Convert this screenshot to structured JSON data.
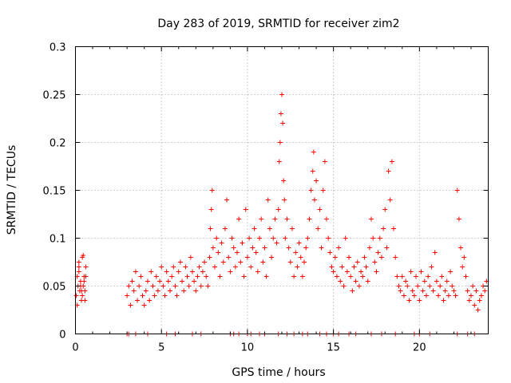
{
  "chart_data": {
    "type": "scatter",
    "title": "Day 283 of 2019, SRMTID for receiver zim2",
    "xlabel": "GPS time / hours",
    "ylabel": "SRMTID / TECUs",
    "xlim": [
      0,
      24
    ],
    "ylim": [
      0,
      0.3
    ],
    "xticks": [
      0,
      5,
      10,
      15,
      20
    ],
    "xtick_labels": [
      "0",
      "5",
      "10",
      "15",
      "20"
    ],
    "yticks": [
      0,
      0.05,
      0.1,
      0.15,
      0.2,
      0.25,
      0.3
    ],
    "ytick_labels": [
      "0",
      "0.05",
      "0.1",
      "0.15",
      "0.2",
      "0.25",
      "0.3"
    ],
    "grid": true,
    "marker": "+",
    "color": "#ff0000",
    "series": [
      {
        "name": "SRMTID",
        "x": [
          0.05,
          0.1,
          0.15,
          0.2,
          0.25,
          0.3,
          0.35,
          0.4,
          0.45,
          0.5,
          0.55,
          0.6,
          0.1,
          0.2,
          0.3,
          0.4,
          0.5,
          0.6,
          0.2,
          0.35,
          0.45,
          0.55,
          3.0,
          3.1,
          3.2,
          3.3,
          3.4,
          3.5,
          3.6,
          3.7,
          3.8,
          3.9,
          4.0,
          4.1,
          4.2,
          4.3,
          4.4,
          4.5,
          4.6,
          4.7,
          4.8,
          4.9,
          5.0,
          5.1,
          5.2,
          5.3,
          5.4,
          5.5,
          5.6,
          5.7,
          5.8,
          5.9,
          6.0,
          6.1,
          6.2,
          6.3,
          6.4,
          6.5,
          6.6,
          6.7,
          6.8,
          6.9,
          7.0,
          7.1,
          7.2,
          7.3,
          7.4,
          7.5,
          7.6,
          7.7,
          7.8,
          7.85,
          7.9,
          7.95,
          8.0,
          8.1,
          8.2,
          8.3,
          8.4,
          8.5,
          8.6,
          8.7,
          8.8,
          8.9,
          9.0,
          9.1,
          9.2,
          9.3,
          9.4,
          9.5,
          9.6,
          9.7,
          9.8,
          9.9,
          10.0,
          10.1,
          10.2,
          10.3,
          10.4,
          10.5,
          10.6,
          10.7,
          10.8,
          10.9,
          11.0,
          11.1,
          11.2,
          11.3,
          11.4,
          11.5,
          11.6,
          11.7,
          11.8,
          11.85,
          11.9,
          11.95,
          12.0,
          12.05,
          12.1,
          12.15,
          12.2,
          12.3,
          12.4,
          12.5,
          12.6,
          12.7,
          12.8,
          12.9,
          13.0,
          13.1,
          13.2,
          13.3,
          13.4,
          13.5,
          13.6,
          13.7,
          13.8,
          13.85,
          13.9,
          14.0,
          14.1,
          14.2,
          14.3,
          14.4,
          14.5,
          14.6,
          14.7,
          14.8,
          14.9,
          15.0,
          15.1,
          15.2,
          15.3,
          15.4,
          15.5,
          15.6,
          15.7,
          15.8,
          15.9,
          16.0,
          16.1,
          16.2,
          16.3,
          16.4,
          16.5,
          16.6,
          16.7,
          16.8,
          16.9,
          17.0,
          17.1,
          17.2,
          17.3,
          17.4,
          17.5,
          17.6,
          17.7,
          17.8,
          17.9,
          18.0,
          18.1,
          18.2,
          18.3,
          18.4,
          18.5,
          18.6,
          18.7,
          18.8,
          18.9,
          19.0,
          19.1,
          19.2,
          19.3,
          19.4,
          19.5,
          19.6,
          19.7,
          19.8,
          19.9,
          20.0,
          20.1,
          20.2,
          20.3,
          20.4,
          20.5,
          20.6,
          20.7,
          20.8,
          20.9,
          21.0,
          21.1,
          21.2,
          21.3,
          21.4,
          21.5,
          21.6,
          21.7,
          21.8,
          21.9,
          22.0,
          22.1,
          22.2,
          22.3,
          22.4,
          22.5,
          22.6,
          22.7,
          22.8,
          22.9,
          23.0,
          23.1,
          23.2,
          23.3,
          23.4,
          23.5,
          23.6,
          23.7,
          23.8,
          23.9,
          3.0,
          3.1,
          3.5,
          4.2,
          5.3,
          5.8,
          6.8,
          7.3,
          9.0,
          9.2,
          9.5,
          10.0,
          10.2,
          10.7,
          11.0,
          11.8,
          12.3,
          12.7,
          13.2,
          13.5,
          14.2,
          14.6,
          15.0,
          15.3,
          15.9,
          16.3,
          17.2,
          17.8,
          18.6,
          19.7,
          20.0,
          20.6,
          22.2,
          22.8,
          23.2
        ],
        "y": [
          0.04,
          0.06,
          0.05,
          0.07,
          0.045,
          0.055,
          0.035,
          0.08,
          0.05,
          0.06,
          0.045,
          0.07,
          0.03,
          0.065,
          0.05,
          0.04,
          0.055,
          0.06,
          0.075,
          0.045,
          0.082,
          0.035,
          0.04,
          0.05,
          0.03,
          0.055,
          0.045,
          0.065,
          0.035,
          0.05,
          0.06,
          0.04,
          0.03,
          0.045,
          0.055,
          0.035,
          0.065,
          0.05,
          0.04,
          0.06,
          0.045,
          0.055,
          0.07,
          0.05,
          0.04,
          0.065,
          0.055,
          0.045,
          0.06,
          0.07,
          0.05,
          0.04,
          0.065,
          0.075,
          0.055,
          0.045,
          0.07,
          0.06,
          0.05,
          0.08,
          0.065,
          0.055,
          0.045,
          0.06,
          0.07,
          0.05,
          0.065,
          0.075,
          0.06,
          0.05,
          0.08,
          0.11,
          0.13,
          0.15,
          0.09,
          0.07,
          0.1,
          0.085,
          0.06,
          0.095,
          0.075,
          0.11,
          0.14,
          0.08,
          0.065,
          0.1,
          0.09,
          0.07,
          0.085,
          0.12,
          0.075,
          0.095,
          0.06,
          0.13,
          0.08,
          0.1,
          0.07,
          0.09,
          0.11,
          0.085,
          0.065,
          0.1,
          0.12,
          0.075,
          0.09,
          0.06,
          0.14,
          0.11,
          0.08,
          0.1,
          0.12,
          0.095,
          0.13,
          0.18,
          0.2,
          0.23,
          0.25,
          0.22,
          0.16,
          0.14,
          0.1,
          0.12,
          0.09,
          0.075,
          0.11,
          0.06,
          0.085,
          0.07,
          0.095,
          0.08,
          0.06,
          0.075,
          0.09,
          0.1,
          0.12,
          0.15,
          0.17,
          0.19,
          0.14,
          0.16,
          0.11,
          0.13,
          0.09,
          0.15,
          0.18,
          0.12,
          0.1,
          0.085,
          0.07,
          0.065,
          0.08,
          0.06,
          0.09,
          0.055,
          0.07,
          0.05,
          0.1,
          0.065,
          0.08,
          0.06,
          0.045,
          0.07,
          0.055,
          0.075,
          0.05,
          0.065,
          0.06,
          0.08,
          0.07,
          0.055,
          0.09,
          0.12,
          0.1,
          0.075,
          0.065,
          0.085,
          0.1,
          0.08,
          0.11,
          0.13,
          0.09,
          0.17,
          0.14,
          0.18,
          0.11,
          0.08,
          0.06,
          0.05,
          0.045,
          0.06,
          0.04,
          0.055,
          0.05,
          0.035,
          0.065,
          0.045,
          0.04,
          0.06,
          0.05,
          0.035,
          0.065,
          0.045,
          0.055,
          0.04,
          0.06,
          0.05,
          0.07,
          0.045,
          0.085,
          0.055,
          0.04,
          0.05,
          0.06,
          0.035,
          0.045,
          0.055,
          0.04,
          0.065,
          0.05,
          0.045,
          0.04,
          0.15,
          0.12,
          0.09,
          0.07,
          0.08,
          0.06,
          0.045,
          0.035,
          0.04,
          0.05,
          0.03,
          0.045,
          0.025,
          0.035,
          0.04,
          0.05,
          0.045,
          0.055,
          0,
          0,
          0,
          0,
          0,
          0,
          0,
          0,
          0,
          0,
          0,
          0,
          0,
          0,
          0,
          0,
          0,
          0,
          0,
          0,
          0,
          0,
          0,
          0,
          0,
          0,
          0,
          0,
          0,
          0,
          0,
          0,
          0,
          0,
          0
        ]
      }
    ]
  }
}
